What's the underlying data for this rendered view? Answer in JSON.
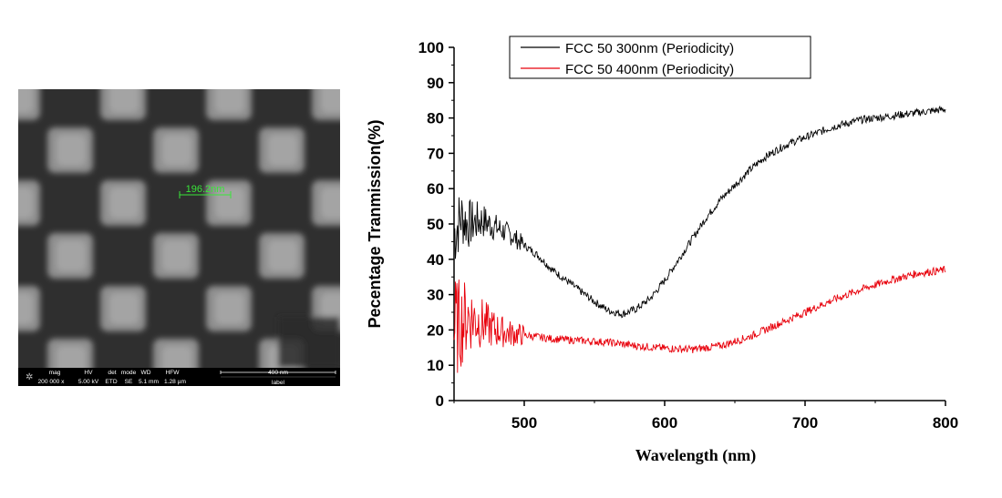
{
  "sem_image": {
    "scale_measurement": "196.2nm",
    "info_bar": {
      "headers": [
        "mag",
        "HV",
        "det",
        "mode",
        "WD",
        "HFW"
      ],
      "values": [
        "200 000 x",
        "5.00 kV",
        "ETD",
        "SE",
        "5.1 mm",
        "1.28 µm"
      ],
      "scale_bar_label": "400 nm",
      "label_text": "label"
    },
    "colors": {
      "measurement": "#39e639",
      "info_text": "#ffffff"
    }
  },
  "chart_data": {
    "type": "line",
    "title": "",
    "xlabel": "Wavelength (nm)",
    "ylabel": "Pecentage Tranmission(%)",
    "xlim": [
      450,
      800
    ],
    "ylim": [
      0,
      100
    ],
    "x_ticks": [
      500,
      600,
      700,
      800
    ],
    "y_ticks": [
      0,
      10,
      20,
      30,
      40,
      50,
      60,
      70,
      80,
      90,
      100
    ],
    "legend_position": "top-center",
    "series": [
      {
        "name": "FCC 50 300nm (Periodicity)",
        "color": "#000000",
        "x": [
          450,
          455,
          460,
          470,
          480,
          490,
          500,
          510,
          520,
          530,
          540,
          550,
          560,
          570,
          580,
          590,
          600,
          610,
          620,
          630,
          640,
          650,
          660,
          670,
          680,
          690,
          700,
          710,
          720,
          730,
          740,
          750,
          760,
          770,
          780,
          790,
          800
        ],
        "y": [
          47,
          52,
          50,
          51,
          49,
          47,
          44,
          41,
          37,
          34,
          31,
          28,
          25.5,
          24.5,
          26,
          29,
          34,
          40,
          46,
          52,
          57,
          61,
          65,
          68.5,
          71,
          73,
          74.5,
          76,
          77.5,
          78.5,
          79.5,
          80,
          80.5,
          81,
          81.5,
          82,
          82.5
        ]
      },
      {
        "name": "FCC 50 400nm (Periodicity)",
        "color": "#e8000b",
        "x": [
          450,
          455,
          460,
          470,
          480,
          490,
          500,
          520,
          540,
          560,
          580,
          600,
          620,
          640,
          660,
          680,
          700,
          720,
          740,
          760,
          780,
          800
        ],
        "y": [
          20,
          22,
          24,
          22,
          20,
          19,
          18.5,
          17.5,
          17,
          16.5,
          15.5,
          14.8,
          14.5,
          15.5,
          18,
          21.5,
          25,
          28.5,
          31.5,
          34,
          36,
          37
        ]
      }
    ]
  }
}
